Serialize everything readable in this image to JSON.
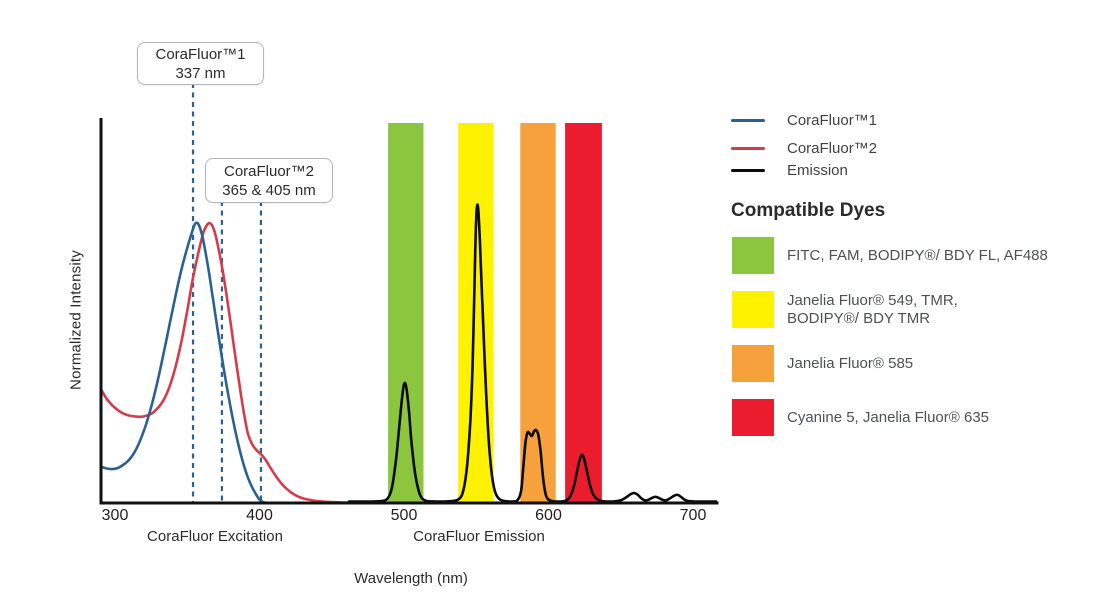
{
  "figure": {
    "background": "#ffffff",
    "y_axis_label": "Normalized Intensity",
    "x_axis_label": "Wavelength (nm)",
    "x_section_labels": {
      "excitation": "CoraFluor Excitation",
      "emission": "CoraFluor Emission"
    },
    "annotations": [
      {
        "title": "CoraFluor™1",
        "subtitle": "337 nm"
      },
      {
        "title": "CoraFluor™2",
        "subtitle": "365 & 405 nm"
      }
    ],
    "legend": [
      {
        "label": "CoraFluor™1",
        "color": "#2A6191"
      },
      {
        "label": "CoraFluor™2",
        "color": "#D63B4B"
      },
      {
        "label": "Emission",
        "color": "#0b0b0b"
      }
    ],
    "compatible_dyes": {
      "heading": "Compatible Dyes",
      "items": [
        {
          "color": "#8CC63F",
          "line1": "FITC, FAM, BODIPY®/ BDY FL, AF488"
        },
        {
          "color": "#FFF200",
          "line1": "Janelia Fluor® 549, TMR,",
          "line2": "BODIPY®/ BDY TMR"
        },
        {
          "color": "#F6A13B",
          "line1": "Janelia Fluor® 585"
        },
        {
          "color": "#EB1C2D",
          "line1": "Cyanine 5, Janelia Fluor® 635"
        }
      ]
    }
  },
  "chart_data": {
    "type": "line",
    "title": "",
    "xlabel": "Wavelength (nm)",
    "ylabel": "Normalized Intensity",
    "x_ticks": [
      300,
      400,
      500,
      600,
      700
    ],
    "x_range_nm": [
      290,
      717
    ],
    "ylim": [
      0,
      1
    ],
    "grid": false,
    "legend_position": "top-right",
    "markers": [
      {
        "label": "CoraFluor™1",
        "value_label": "337 nm",
        "nominal_nm": [
          337
        ],
        "lines_x_nm_visual": [
          354
        ]
      },
      {
        "label": "CoraFluor™2",
        "value_label": "365 & 405 nm",
        "nominal_nm": [
          365,
          405
        ],
        "lines_x_nm_visual": [
          374,
          401
        ]
      }
    ],
    "bands": [
      {
        "label": "FITC, FAM, BODIPY®/ BDY FL, AF488",
        "range_nm": [
          489,
          513.5
        ],
        "top": 0.987,
        "color": "#8CC63F"
      },
      {
        "label": "Janelia Fluor® 549, TMR, BODIPY®/ BDY TMR",
        "range_nm": [
          537.5,
          562
        ],
        "top": 0.987,
        "color": "#FFF200"
      },
      {
        "label": "Janelia Fluor® 585",
        "range_nm": [
          580.5,
          605
        ],
        "top": 0.987,
        "color": "#F6A13B"
      },
      {
        "label": "Cyanine 5, Janelia Fluor® 635",
        "range_nm": [
          611.5,
          637
        ],
        "top": 0.987,
        "color": "#EB1C2D"
      }
    ],
    "series": [
      {
        "name": "CoraFluor™2",
        "kind": "excitation",
        "color": "#D63B4B",
        "width": 2.6,
        "points": [
          [
            290.3,
            0.295
          ],
          [
            294,
            0.272
          ],
          [
            298,
            0.254
          ],
          [
            302,
            0.241
          ],
          [
            306,
            0.232
          ],
          [
            310,
            0.227
          ],
          [
            314,
            0.225
          ],
          [
            318,
            0.224
          ],
          [
            322,
            0.227
          ],
          [
            326,
            0.234
          ],
          [
            330,
            0.248
          ],
          [
            334,
            0.27
          ],
          [
            338,
            0.305
          ],
          [
            342,
            0.355
          ],
          [
            346,
            0.42
          ],
          [
            350,
            0.5
          ],
          [
            354,
            0.585
          ],
          [
            358,
            0.655
          ],
          [
            361,
            0.7
          ],
          [
            363,
            0.718
          ],
          [
            365,
            0.727
          ],
          [
            367,
            0.722
          ],
          [
            369,
            0.704
          ],
          [
            371,
            0.672
          ],
          [
            374,
            0.615
          ],
          [
            377,
            0.545
          ],
          [
            380,
            0.468
          ],
          [
            383,
            0.388
          ],
          [
            386,
            0.31
          ],
          [
            389,
            0.238
          ],
          [
            392,
            0.18
          ],
          [
            395,
            0.152
          ],
          [
            398,
            0.137
          ],
          [
            401,
            0.127
          ],
          [
            404,
            0.113
          ],
          [
            407,
            0.095
          ],
          [
            410,
            0.077
          ],
          [
            413,
            0.061
          ],
          [
            416,
            0.047
          ],
          [
            419,
            0.036
          ],
          [
            422,
            0.027
          ],
          [
            426,
            0.018
          ],
          [
            430,
            0.012
          ],
          [
            435,
            0.008
          ],
          [
            440,
            0.005
          ],
          [
            446,
            0.003
          ],
          [
            452,
            0.002
          ],
          [
            460,
            0.001
          ],
          [
            468,
            0.001
          ]
        ]
      },
      {
        "name": "CoraFluor™1",
        "kind": "excitation",
        "color": "#2A6191",
        "width": 2.6,
        "points": [
          [
            290.3,
            0.094
          ],
          [
            294,
            0.09
          ],
          [
            298,
            0.088
          ],
          [
            302,
            0.091
          ],
          [
            306,
            0.1
          ],
          [
            310,
            0.113
          ],
          [
            314,
            0.135
          ],
          [
            318,
            0.168
          ],
          [
            322,
            0.21
          ],
          [
            326,
            0.263
          ],
          [
            330,
            0.325
          ],
          [
            334,
            0.395
          ],
          [
            338,
            0.468
          ],
          [
            342,
            0.54
          ],
          [
            346,
            0.607
          ],
          [
            350,
            0.663
          ],
          [
            353,
            0.7
          ],
          [
            355,
            0.722
          ],
          [
            356.5,
            0.728
          ],
          [
            358,
            0.722
          ],
          [
            360,
            0.7
          ],
          [
            362,
            0.664
          ],
          [
            365,
            0.6
          ],
          [
            368,
            0.525
          ],
          [
            371,
            0.45
          ],
          [
            374,
            0.378
          ],
          [
            377,
            0.31
          ],
          [
            380,
            0.248
          ],
          [
            383,
            0.192
          ],
          [
            386,
            0.142
          ],
          [
            389,
            0.1
          ],
          [
            392,
            0.066
          ],
          [
            395,
            0.04
          ],
          [
            398,
            0.02
          ],
          [
            400,
            0.009
          ],
          [
            402,
            0.003
          ],
          [
            404,
            0.001
          ]
        ]
      },
      {
        "name": "Emission",
        "kind": "emission",
        "color": "#0b0b0b",
        "width": 2.6,
        "points": [
          [
            462,
            0.004
          ],
          [
            470,
            0.004
          ],
          [
            478,
            0.004
          ],
          [
            484,
            0.005
          ],
          [
            488,
            0.009
          ],
          [
            491,
            0.03
          ],
          [
            493,
            0.07
          ],
          [
            495,
            0.13
          ],
          [
            497,
            0.21
          ],
          [
            499,
            0.285
          ],
          [
            500.5,
            0.312
          ],
          [
            502,
            0.29
          ],
          [
            503.5,
            0.235
          ],
          [
            505,
            0.165
          ],
          [
            507,
            0.095
          ],
          [
            509,
            0.05
          ],
          [
            511,
            0.022
          ],
          [
            513,
            0.01
          ],
          [
            516,
            0.005
          ],
          [
            522,
            0.004
          ],
          [
            528,
            0.004
          ],
          [
            533,
            0.005
          ],
          [
            537,
            0.008
          ],
          [
            540,
            0.02
          ],
          [
            542,
            0.05
          ],
          [
            544,
            0.11
          ],
          [
            546,
            0.22
          ],
          [
            547.5,
            0.36
          ],
          [
            548.5,
            0.52
          ],
          [
            549.3,
            0.65
          ],
          [
            550,
            0.745
          ],
          [
            550.8,
            0.775
          ],
          [
            551.6,
            0.75
          ],
          [
            552.5,
            0.68
          ],
          [
            554,
            0.54
          ],
          [
            555.5,
            0.4
          ],
          [
            557,
            0.27
          ],
          [
            558.5,
            0.17
          ],
          [
            560,
            0.1
          ],
          [
            562,
            0.045
          ],
          [
            564,
            0.02
          ],
          [
            566.5,
            0.009
          ],
          [
            570,
            0.005
          ],
          [
            575,
            0.004
          ],
          [
            578.5,
            0.007
          ],
          [
            581,
            0.03
          ],
          [
            582.5,
            0.09
          ],
          [
            584,
            0.155
          ],
          [
            585.5,
            0.183
          ],
          [
            587,
            0.18
          ],
          [
            588.5,
            0.174
          ],
          [
            590,
            0.186
          ],
          [
            591.5,
            0.189
          ],
          [
            593,
            0.176
          ],
          [
            594.5,
            0.135
          ],
          [
            596,
            0.075
          ],
          [
            597.5,
            0.032
          ],
          [
            599,
            0.013
          ],
          [
            601.5,
            0.006
          ],
          [
            605,
            0.004
          ],
          [
            609,
            0.004
          ],
          [
            612.5,
            0.007
          ],
          [
            615,
            0.017
          ],
          [
            617.5,
            0.042
          ],
          [
            619.5,
            0.077
          ],
          [
            621.5,
            0.111
          ],
          [
            623,
            0.125
          ],
          [
            624.5,
            0.117
          ],
          [
            626.5,
            0.085
          ],
          [
            628.5,
            0.05
          ],
          [
            630.5,
            0.026
          ],
          [
            633,
            0.012
          ],
          [
            636,
            0.006
          ],
          [
            640,
            0.004
          ],
          [
            645,
            0.004
          ],
          [
            650,
            0.007
          ],
          [
            653.5,
            0.014
          ],
          [
            656.5,
            0.022
          ],
          [
            659,
            0.026
          ],
          [
            661.5,
            0.022
          ],
          [
            664,
            0.013
          ],
          [
            666.5,
            0.007
          ],
          [
            669,
            0.008
          ],
          [
            671.5,
            0.013
          ],
          [
            674,
            0.016
          ],
          [
            676.5,
            0.013
          ],
          [
            679,
            0.008
          ],
          [
            681.5,
            0.007
          ],
          [
            684,
            0.012
          ],
          [
            687,
            0.019
          ],
          [
            689.5,
            0.021
          ],
          [
            692,
            0.015
          ],
          [
            694.5,
            0.008
          ],
          [
            697,
            0.005
          ],
          [
            701,
            0.004
          ],
          [
            708,
            0.004
          ],
          [
            716,
            0.004
          ]
        ]
      }
    ]
  }
}
